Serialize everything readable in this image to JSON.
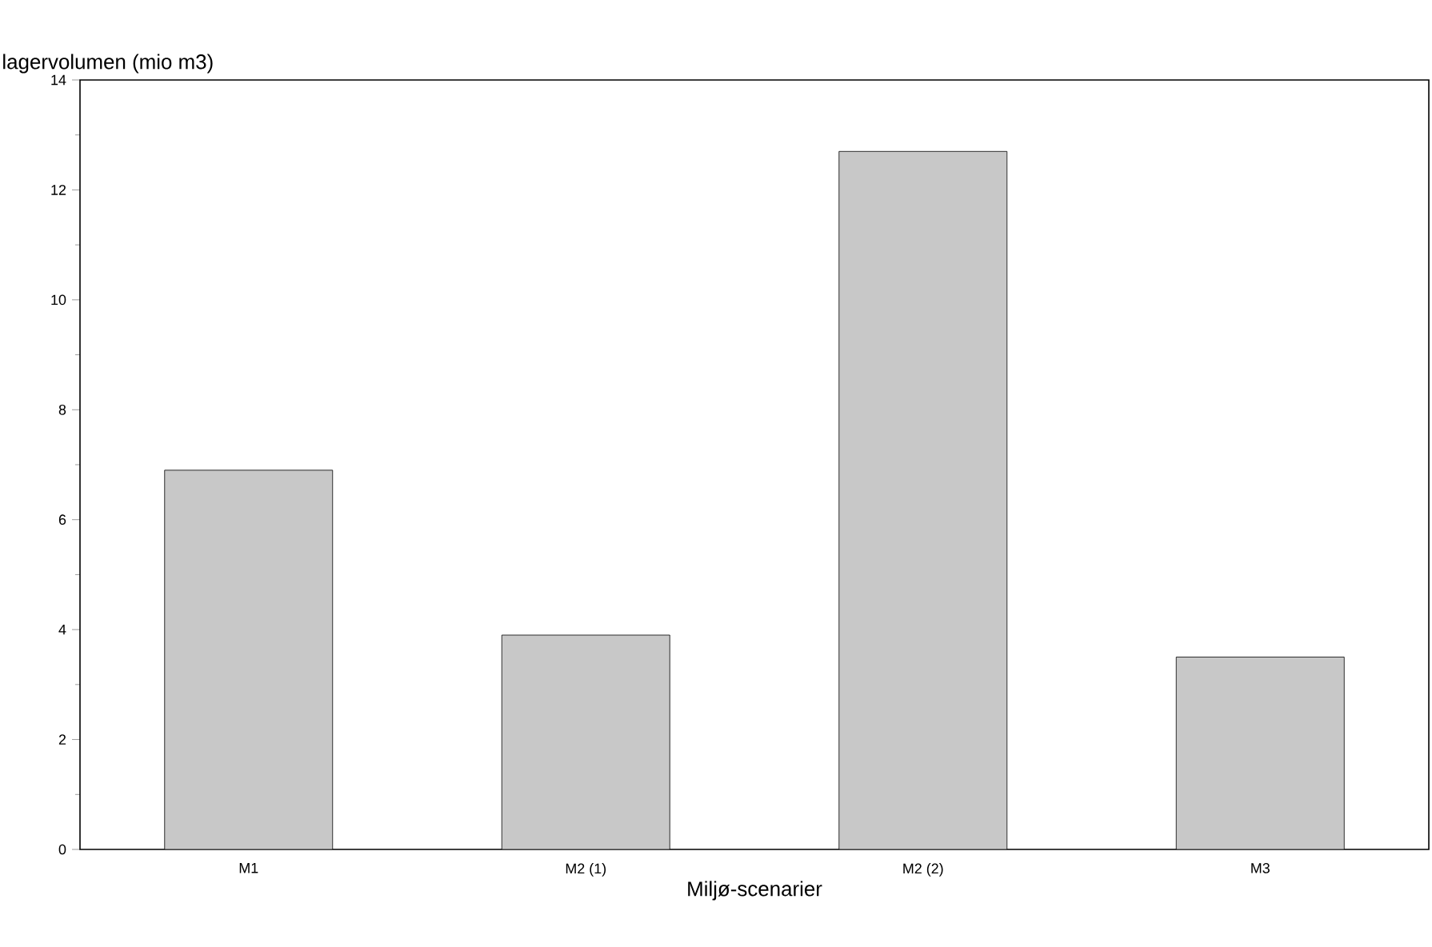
{
  "chart_data": {
    "type": "bar",
    "ylabel": "lagervolumen (mio m3)",
    "xlabel": "Miljø-scenarier",
    "categories": [
      "M1",
      "M2 (1)",
      "M2 (2)",
      "M3"
    ],
    "values": [
      6.9,
      3.9,
      12.7,
      3.5
    ],
    "color": "#c8c8c8",
    "ylim": [
      0,
      14
    ],
    "yticks": [
      0,
      2,
      4,
      6,
      8,
      10,
      12,
      14
    ]
  }
}
